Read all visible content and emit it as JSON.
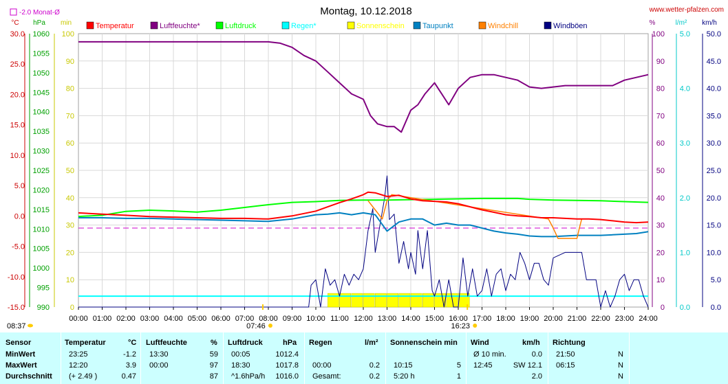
{
  "header": {
    "title": "Montag, 10.12.2018",
    "site": "www.wetter-pfalzen.com",
    "monthavg_label": "-2.0 Monat-Ø"
  },
  "colors": {
    "temperature": "#ff0000",
    "humidity": "#800080",
    "pressure": "#00ff00",
    "rain": "#00ffff",
    "sunshine": "#ffff00",
    "dewpoint": "#0080c0",
    "windchill": "#ff8000",
    "gust": "#000080",
    "table_bg": "#ccffff"
  },
  "chart_data": {
    "type": "line",
    "title": "Montag, 10.12.2018",
    "x_ticks": [
      "00:00",
      "01:00",
      "02:00",
      "03:00",
      "04:00",
      "05:00",
      "06:00",
      "07:00",
      "08:00",
      "09:00",
      "10:00",
      "11:00",
      "12:00",
      "13:00",
      "14:00",
      "15:00",
      "16:00",
      "17:00",
      "18:00",
      "19:00",
      "20:00",
      "21:00",
      "22:00",
      "23:00",
      "24:00"
    ],
    "x_range_hours": [
      0,
      24
    ],
    "grid": true,
    "axes": {
      "temp": {
        "unit": "°C",
        "range": [
          -15,
          30
        ],
        "ticks": [
          "30.0",
          "25.0",
          "20.0",
          "15.0",
          "10.0",
          "5.0",
          "0.0",
          "-5.0",
          "-10.0",
          "-15.0"
        ]
      },
      "press": {
        "unit": "hPa",
        "range": [
          990,
          1060
        ],
        "ticks": [
          "1060",
          "1055",
          "1050",
          "1045",
          "1040",
          "1035",
          "1030",
          "1025",
          "1020",
          "1015",
          "1010",
          "1005",
          "1000",
          "995",
          "990"
        ]
      },
      "sun": {
        "unit": "min",
        "range": [
          0,
          100
        ],
        "ticks": [
          "100",
          "90",
          "80",
          "70",
          "60",
          "50",
          "40",
          "30",
          "20",
          "10",
          "0"
        ]
      },
      "hum": {
        "unit": "%",
        "range": [
          0,
          100
        ],
        "ticks": [
          "100",
          "90",
          "80",
          "70",
          "60",
          "50",
          "40",
          "30",
          "20",
          "10",
          "0"
        ]
      },
      "rain": {
        "unit": "l/m²",
        "range": [
          0,
          5
        ],
        "ticks": [
          "5.0",
          "4.0",
          "3.0",
          "2.0",
          "1.0",
          "0.0"
        ]
      },
      "wind": {
        "unit": "km/h",
        "range": [
          0,
          50
        ],
        "ticks": [
          "50.0",
          "45.0",
          "40.0",
          "35.0",
          "30.0",
          "25.0",
          "20.0",
          "15.0",
          "10.0",
          "5.0",
          "0.0"
        ]
      }
    },
    "legend": [
      "Temperatur",
      "Luftfeuchte*",
      "Luftdruck",
      "Regen*",
      "Sonnenschein",
      "Taupunkt",
      "Windchill",
      "Windböen"
    ],
    "sunrise": "07:46",
    "sunset": "16:23",
    "day_start": "08:37",
    "series": [
      {
        "name": "Temperatur",
        "axis": "temp",
        "x": [
          0,
          1,
          2,
          3,
          4,
          5,
          6,
          7,
          8,
          9,
          10,
          10.5,
          11,
          11.5,
          12,
          12.2,
          12.5,
          13,
          13.5,
          14,
          14.5,
          15,
          15.5,
          16,
          16.5,
          17,
          17.5,
          18,
          18.5,
          19,
          19.5,
          20,
          20.5,
          21,
          21.5,
          22,
          22.5,
          23,
          23.5,
          24
        ],
        "y": [
          0.5,
          0.3,
          0.1,
          -0.1,
          -0.2,
          -0.3,
          -0.4,
          -0.4,
          -0.5,
          0,
          0.8,
          1.5,
          2.2,
          2.8,
          3.5,
          3.9,
          3.8,
          3.2,
          3.4,
          2.8,
          2.5,
          2.4,
          2.3,
          2.0,
          1.5,
          1.0,
          0.6,
          0.2,
          0,
          -0.1,
          -0.3,
          -0.3,
          -0.4,
          -0.5,
          -0.5,
          -0.6,
          -0.8,
          -1.0,
          -1.1,
          -1.0
        ]
      },
      {
        "name": "Luftfeuchte*",
        "axis": "hum",
        "x": [
          0,
          1,
          2,
          3,
          4,
          5,
          6,
          7,
          8,
          8.5,
          9,
          9.5,
          10,
          10.5,
          11,
          11.5,
          12,
          12.3,
          12.6,
          13,
          13.3,
          13.6,
          14,
          14.3,
          14.6,
          15,
          15.3,
          15.6,
          16,
          16.5,
          17,
          17.5,
          18,
          18.5,
          19,
          19.5,
          20,
          20.5,
          21,
          21.5,
          22,
          22.5,
          23,
          23.5,
          24
        ],
        "y": [
          97,
          97,
          97,
          97,
          97,
          97,
          97,
          97,
          97,
          96.5,
          95,
          92,
          90,
          86,
          82,
          78,
          76,
          70,
          67,
          66,
          66,
          64,
          72,
          74,
          78,
          82,
          78,
          74,
          80,
          84,
          85,
          85,
          84,
          83,
          80.5,
          80,
          80.5,
          81,
          81,
          81,
          81,
          81,
          83,
          84,
          85
        ]
      },
      {
        "name": "Luftdruck",
        "axis": "press",
        "x": [
          0,
          1,
          2,
          3,
          4,
          5,
          6,
          7,
          8,
          9,
          10,
          11,
          12,
          13,
          14,
          15,
          16,
          17,
          18,
          18.5,
          19,
          20,
          21,
          22,
          23,
          24
        ],
        "y": [
          1013.2,
          1013.5,
          1014.5,
          1014.8,
          1014.6,
          1014.3,
          1014.8,
          1015.5,
          1016.2,
          1016.8,
          1017.0,
          1017.3,
          1017.4,
          1017.4,
          1017.5,
          1017.6,
          1017.7,
          1017.8,
          1017.8,
          1017.8,
          1017.6,
          1017.4,
          1017.3,
          1017.2,
          1017.0,
          1016.8
        ]
      },
      {
        "name": "Regen*",
        "axis": "rain",
        "x": [
          0,
          24
        ],
        "y": [
          0.2,
          0.2
        ]
      },
      {
        "name": "Taupunkt",
        "axis": "temp",
        "x": [
          0,
          1,
          2,
          3,
          4,
          5,
          6,
          7,
          8,
          9,
          10,
          10.5,
          11,
          11.5,
          12,
          12.5,
          13,
          13.5,
          14,
          14.5,
          15,
          15.5,
          16,
          16.5,
          17,
          17.5,
          18,
          18.5,
          19,
          19.5,
          20,
          20.5,
          21,
          21.5,
          22,
          22.5,
          23,
          23.5,
          24
        ],
        "y": [
          -0.3,
          -0.3,
          -0.4,
          -0.4,
          -0.5,
          -0.6,
          -0.7,
          -0.8,
          -0.9,
          -0.5,
          0.2,
          0.3,
          0.5,
          0.2,
          0.5,
          0.2,
          -2.5,
          -1.0,
          -0.5,
          -0.5,
          -1.5,
          -1.2,
          -1.5,
          -1.5,
          -2.0,
          -2.5,
          -2.8,
          -3.0,
          -3.3,
          -3.4,
          -3.4,
          -3.3,
          -3.2,
          -3.2,
          -3.2,
          -3.1,
          -3.0,
          -2.9,
          -2.6
        ]
      },
      {
        "name": "Windchill",
        "axis": "temp",
        "x": [
          12.2,
          12.5,
          12.8,
          13.0,
          13.2,
          19.8,
          20.0,
          20.2,
          21.0,
          21.1,
          21.2
        ],
        "y": [
          2.5,
          1.0,
          -0.5,
          2.5,
          3.5,
          -0.5,
          -2.0,
          -3.7,
          -3.7,
          -2.0,
          -0.5
        ]
      },
      {
        "name": "Windböen",
        "axis": "wind",
        "x": [
          0,
          9.7,
          9.8,
          10,
          10.2,
          10.4,
          10.6,
          10.8,
          11,
          11.2,
          11.4,
          11.6,
          11.8,
          12,
          12.2,
          12.4,
          12.5,
          12.7,
          12.9,
          13,
          13.1,
          13.3,
          13.5,
          13.7,
          13.9,
          14,
          14.2,
          14.3,
          14.5,
          14.7,
          14.9,
          15,
          15.2,
          15.4,
          15.6,
          15.8,
          16,
          16.2,
          16.4,
          16.6,
          16.8,
          17,
          17.2,
          17.4,
          17.6,
          17.8,
          18,
          18.2,
          18.4,
          18.6,
          18.8,
          19,
          19.2,
          19.4,
          19.6,
          19.8,
          20,
          20.5,
          21,
          21.2,
          21.4,
          21.8,
          22,
          22.2,
          22.4,
          22.6,
          22.8,
          23,
          23.2,
          23.4,
          23.6,
          23.8,
          24
        ],
        "y": [
          0,
          0,
          4,
          5,
          0,
          7,
          4,
          5,
          2,
          6,
          4,
          6,
          5,
          7,
          14,
          18,
          10,
          15,
          20,
          24,
          16,
          17,
          8,
          12,
          7,
          10,
          6,
          14,
          7,
          14,
          3,
          2,
          5,
          0,
          5,
          0,
          0,
          9,
          2,
          7,
          2,
          3,
          7,
          2,
          6,
          7,
          3,
          6,
          5,
          10,
          8,
          5,
          8,
          8,
          5,
          4,
          9,
          10,
          10,
          10,
          5,
          5,
          0,
          3,
          0,
          2,
          5,
          6,
          3,
          5,
          5,
          2,
          0
        ]
      },
      {
        "name": "Sonnenschein",
        "axis": "sun",
        "x": [
          10.5,
          11,
          11.5,
          12,
          12.5,
          13,
          13.5,
          14,
          14.5,
          15,
          15.5,
          16
        ],
        "y": [
          5,
          5,
          5,
          5,
          5,
          5,
          5,
          5,
          5,
          5,
          5,
          5
        ]
      }
    ]
  },
  "stats": {
    "headers": {
      "sensor": "Sensor",
      "temp": "Temperatur",
      "temp_unit": "°C",
      "hum": "Luftfeuchte",
      "hum_unit": "%",
      "press": "Luftdruck",
      "press_unit": "hPa",
      "rain": "Regen",
      "rain_unit": "l/m²",
      "sun": "Sonnenschein min",
      "wind": "Wind",
      "wind_unit": "km/h",
      "dir": "Richtung"
    },
    "rows": [
      {
        "label": "MinWert",
        "temp_t": "23:25",
        "temp_v": "-1.2",
        "hum_t": "13:30",
        "hum_v": "59",
        "press_t": "00:05",
        "press_v": "1012.4",
        "rain_t": "",
        "rain_v": "",
        "sun_t": "",
        "sun_v": "",
        "wind_t": "Ø 10 min.",
        "wind_v": "0.0",
        "dir_t": "21:50",
        "dir_v": "N"
      },
      {
        "label": "MaxWert",
        "temp_t": "12:20",
        "temp_v": "3.9",
        "hum_t": "00:00",
        "hum_v": "97",
        "press_t": "18:30",
        "press_v": "1017.8",
        "rain_t": "00:00",
        "rain_v": "0.2",
        "sun_t": "10:15",
        "sun_v": "5",
        "wind_t": "12:45",
        "wind_v": "SW 12.1",
        "dir_t": "06:15",
        "dir_v": "N"
      },
      {
        "label": "Durchschnitt",
        "temp_t": "(+ 2.49 )",
        "temp_v": "0.47",
        "hum_t": "",
        "hum_v": "87",
        "press_t": "^1.6hPa/h",
        "press_v": "1016.0",
        "rain_t": "Gesamt:",
        "rain_v": "0.2",
        "sun_t": "5:20 h",
        "sun_v": "1",
        "wind_t": "",
        "wind_v": "2.0",
        "dir_t": "",
        "dir_v": "N"
      }
    ]
  }
}
